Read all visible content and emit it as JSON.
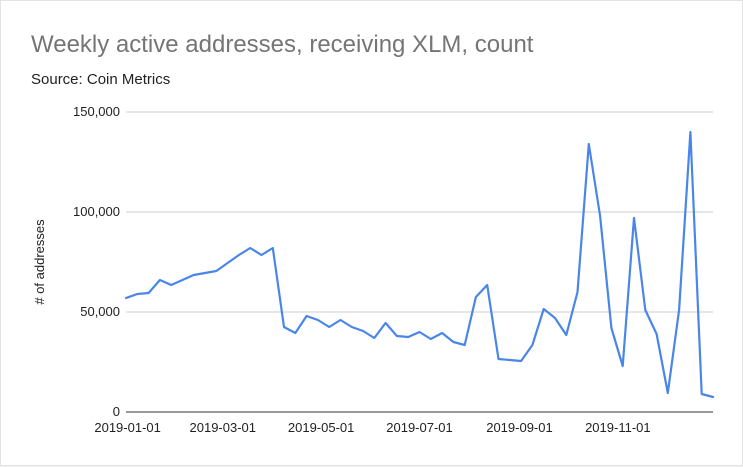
{
  "chart_data": {
    "type": "line",
    "title": "Weekly active addresses, receiving XLM, count",
    "subtitle": "Source: Coin Metrics",
    "xlabel": "",
    "ylabel": "# of addresses",
    "ylim": [
      0,
      150000
    ],
    "yticks": [
      0,
      50000,
      100000,
      150000
    ],
    "ytick_labels": [
      "0",
      "50,000",
      "100,000",
      "150,000"
    ],
    "xlim": [
      "2018-12-31",
      "2019-12-30"
    ],
    "xticks": [
      "2019-01-01",
      "2019-03-01",
      "2019-05-01",
      "2019-07-01",
      "2019-09-01",
      "2019-11-01"
    ],
    "grid": true,
    "legend": "none",
    "series": [
      {
        "color": "#4a86e8",
        "x": [
          "2018-12-31",
          "2019-01-07",
          "2019-01-14",
          "2019-01-21",
          "2019-01-28",
          "2019-02-04",
          "2019-02-11",
          "2019-02-18",
          "2019-02-25",
          "2019-03-04",
          "2019-03-11",
          "2019-03-18",
          "2019-03-25",
          "2019-04-01",
          "2019-04-08",
          "2019-04-15",
          "2019-04-22",
          "2019-04-29",
          "2019-05-06",
          "2019-05-13",
          "2019-05-20",
          "2019-05-27",
          "2019-06-03",
          "2019-06-10",
          "2019-06-17",
          "2019-06-24",
          "2019-07-01",
          "2019-07-08",
          "2019-07-15",
          "2019-07-22",
          "2019-07-29",
          "2019-08-05",
          "2019-08-12",
          "2019-08-19",
          "2019-08-26",
          "2019-09-02",
          "2019-09-09",
          "2019-09-16",
          "2019-09-23",
          "2019-09-30",
          "2019-10-07",
          "2019-10-14",
          "2019-10-21",
          "2019-10-28",
          "2019-11-04",
          "2019-11-11",
          "2019-11-18",
          "2019-11-25",
          "2019-12-02",
          "2019-12-09",
          "2019-12-16",
          "2019-12-23",
          "2019-12-30"
        ],
        "y": [
          57000,
          59000,
          59500,
          66000,
          63500,
          66000,
          68500,
          69500,
          70500,
          74500,
          78500,
          82000,
          78500,
          82000,
          42500,
          39500,
          48000,
          46000,
          42500,
          46000,
          42500,
          40500,
          37000,
          44500,
          38000,
          37500,
          40000,
          36500,
          39500,
          35000,
          33500,
          57500,
          63500,
          26500,
          26000,
          25500,
          33500,
          51500,
          47000,
          38500,
          60000,
          134000,
          98000,
          42000,
          23000,
          97000,
          51000,
          39000,
          9500,
          51000,
          140000,
          9000,
          7500
        ]
      }
    ]
  }
}
